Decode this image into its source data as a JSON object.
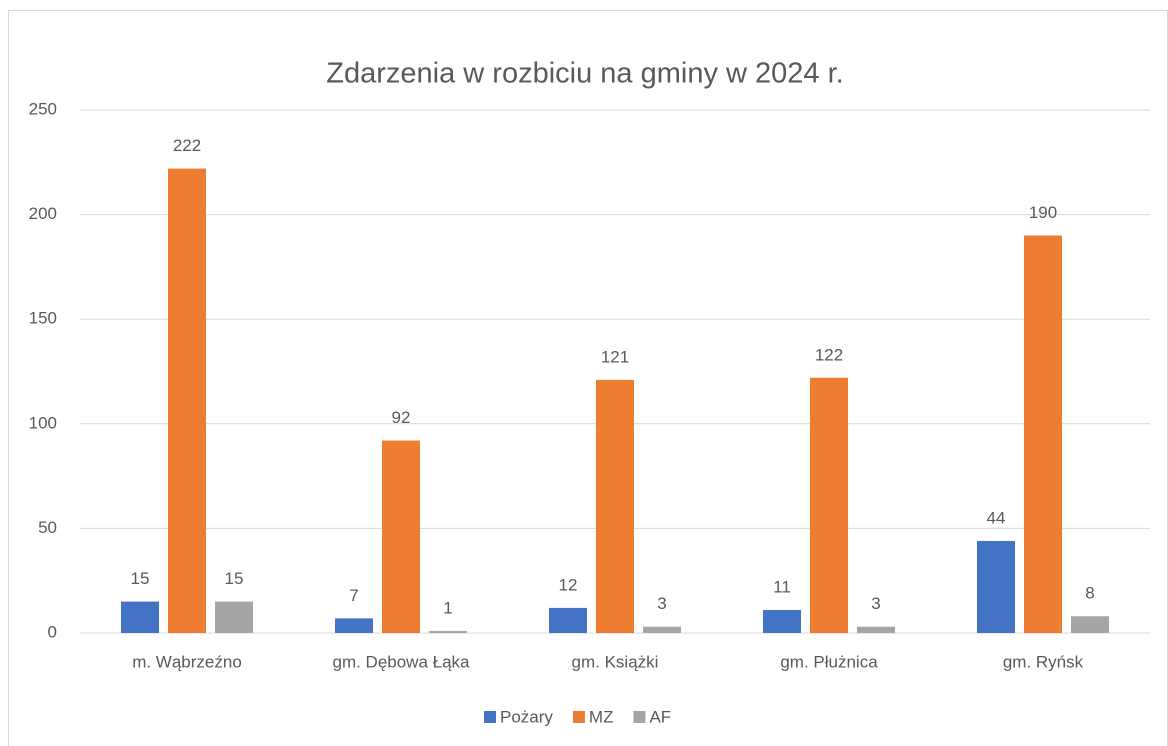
{
  "chart_data": {
    "type": "bar",
    "title": "Zdarzenia w rozbiciu na gminy w 2024 r.",
    "categories": [
      "m. Wąbrzeźno",
      "gm. Dębowa Łąka",
      "gm. Książki",
      "gm. Płużnica",
      "gm. Ryńsk"
    ],
    "series": [
      {
        "name": "Pożary",
        "color": "#4472c4",
        "values": [
          15,
          7,
          12,
          11,
          44
        ]
      },
      {
        "name": "MZ",
        "color": "#ed7d31",
        "values": [
          222,
          92,
          121,
          122,
          190
        ]
      },
      {
        "name": "AF",
        "color": "#a5a5a5",
        "values": [
          15,
          1,
          3,
          3,
          8
        ]
      }
    ],
    "ylim": [
      0,
      250
    ],
    "yticks": [
      0,
      50,
      100,
      150,
      200,
      250
    ],
    "grid": true,
    "legend": "bottom"
  }
}
